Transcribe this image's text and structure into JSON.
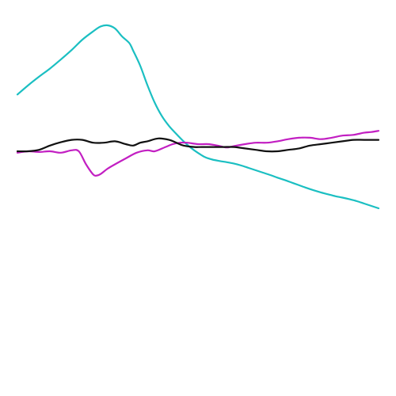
{
  "chart_data": {
    "type": "line",
    "title": "",
    "xlabel": "",
    "ylabel": "",
    "xlim": [
      0,
      100
    ],
    "ylim": [
      -0.5,
      0.5
    ],
    "grid": false,
    "axes_visible": false,
    "legend": "none",
    "series": [
      {
        "color": "#1bbfc2",
        "x": [
          0,
          3,
          6,
          9,
          12,
          15,
          18,
          21,
          23,
          25,
          27,
          29,
          31,
          32,
          34,
          36,
          38,
          40,
          42,
          44,
          46,
          48,
          50,
          52,
          54,
          56,
          58,
          60,
          62,
          64,
          66,
          68,
          70,
          72,
          74,
          76,
          78,
          80,
          82,
          84,
          86,
          88,
          90,
          92,
          94,
          96,
          98,
          100
        ],
        "y": [
          0.209,
          0.248,
          0.284,
          0.318,
          0.356,
          0.396,
          0.44,
          0.475,
          0.495,
          0.5,
          0.487,
          0.453,
          0.425,
          0.395,
          0.33,
          0.248,
          0.175,
          0.118,
          0.076,
          0.043,
          0.012,
          -0.015,
          -0.037,
          -0.055,
          -0.065,
          -0.071,
          -0.076,
          -0.082,
          -0.09,
          -0.1,
          -0.11,
          -0.12,
          -0.13,
          -0.141,
          -0.151,
          -0.162,
          -0.173,
          -0.184,
          -0.194,
          -0.203,
          -0.211,
          -0.219,
          -0.225,
          -0.232,
          -0.24,
          -0.25,
          -0.26,
          -0.27
        ]
      },
      {
        "color": "#c21fc2",
        "x": [
          0,
          3,
          6,
          9,
          12,
          15,
          17,
          19,
          21,
          22,
          23,
          25,
          27,
          30,
          33,
          36,
          38,
          41,
          43,
          45,
          47,
          50,
          53,
          56,
          58,
          60,
          63,
          66,
          69,
          72,
          75,
          78,
          81,
          84,
          87,
          90,
          93,
          96,
          98,
          100
        ],
        "y": [
          -0.036,
          -0.03,
          -0.033,
          -0.03,
          -0.036,
          -0.026,
          -0.03,
          -0.085,
          -0.128,
          -0.132,
          -0.126,
          -0.103,
          -0.085,
          -0.06,
          -0.036,
          -0.026,
          -0.03,
          -0.012,
          0.0,
          0.006,
          0.006,
          0.0,
          0.0,
          -0.008,
          -0.014,
          -0.008,
          0.0,
          0.006,
          0.006,
          0.012,
          0.021,
          0.027,
          0.027,
          0.021,
          0.027,
          0.036,
          0.039,
          0.048,
          0.051,
          0.056
        ]
      },
      {
        "color": "#111111",
        "x": [
          0,
          3,
          6,
          9,
          12,
          15,
          18,
          21,
          24,
          27,
          30,
          32,
          34,
          36,
          39,
          42,
          44,
          46,
          49,
          51,
          54,
          57,
          60,
          63,
          66,
          69,
          72,
          75,
          78,
          81,
          84,
          87,
          90,
          93,
          96,
          100
        ],
        "y": [
          -0.03,
          -0.03,
          -0.024,
          -0.006,
          0.008,
          0.018,
          0.018,
          0.006,
          0.006,
          0.012,
          0.0,
          -0.006,
          0.006,
          0.012,
          0.024,
          0.018,
          0.006,
          -0.006,
          -0.012,
          -0.012,
          -0.012,
          -0.012,
          -0.012,
          -0.018,
          -0.024,
          -0.03,
          -0.03,
          -0.024,
          -0.018,
          -0.006,
          0.0,
          0.006,
          0.012,
          0.018,
          0.018,
          0.018
        ]
      }
    ]
  }
}
